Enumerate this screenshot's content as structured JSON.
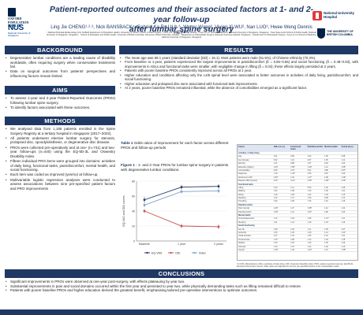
{
  "header": {
    "title_line1": "Patient-reported outcomes and their associated factors at 1- and 2-year follow-up",
    "title_line2": "after lumbar spine surgery",
    "authors": "Ling Jie CHENG¹·²·³, Nick BANSBACK⁴, Gabriel Ka Po LIU⁵·⁶, Wenru Wang², Vivien Xi WU², Nan LUO³, Hwee Weng Dennis HEY⁵·⁶",
    "affiliations": "¹ National Perinatal Epidemiology Unit, Nuffield Department of Population Health, University of Oxford, Oxford, United Kingdom; ² Alice Lee Centre for Nursing Studies, Yong Loo Lin School of Medicine, National University of Singapore, Singapore; ³ Saw Swee Hock School of Public Health, National University of Singapore, Singapore; ⁴ School of Population and Public Health, University of British Columbia, Vancouver, British Columbia, Canada; ⁵ Department of Orthopaedic Surgery, National University Hospital, Singapore; ⁶ Department of Orthopaedic Surgery, Yong Loo Lin School of Medicine, National University of Singapore, Singapore"
  },
  "logos": {
    "oxford": "OXFORD POPULATION HEALTH",
    "nus": "NUS",
    "nus_sub": "National University of Singapore",
    "nuh": "National University Hospital",
    "ubc": "THE UNIVERSITY OF BRITISH COLUMBIA"
  },
  "sections": {
    "background": "BACKGROUND",
    "aims": "AIMS",
    "methods": "METHODS",
    "results": "RESULTS",
    "conclusions": "CONCLUSIONS"
  },
  "background": [
    "Degenerative lumbar conditions are a leading cause of disability worldwide, often requiring surgery when conservative treatments fail.",
    "Data on surgical outcomes from patients' perspectives and influencing factors remain limited."
  ],
  "aims": [
    "To assess 1-year and 2-year Patient-Reported Outcomes (PROs) following lumbar spine surgery.",
    "To identify factors associated with these outcomes."
  ],
  "methods": [
    "We analysed data from 1,195 patients enrolled in the Spine Surgery Registry at a tertiary hospital in Singapore (2017–2022).",
    "All patients underwent elective lumbar surgery for stenosis, prolapsed disc, spondylolisthesis, or degenerative disc disease.",
    "PROs were collected pre-operatively and at one- (n=741) and two-year follow-ups (n=440) using the EQ-5D-3L and Oswestry Disability Index.",
    "Fifteen individual PRO items were grouped into domains: activities of daily living, functional tasks, pain/discomfort, mental health, and social functioning.",
    "Each item was coded as improved (yes/no) at follow-up.",
    "Multivariable logistic regression analyses were conducted to assess associations between nine pre-specified patient factors and PRO improvements"
  ],
  "results": [
    "The mean age was 58.1 years (standard deviation [SD] = 16.1). Most patients were male (51.5%), of Chinese ethnicity (70.3%).",
    "From baseline to 1-year, patients experienced the largest improvements in pain/discomfort (δ = 0.55–0.56) and social functioning (δ = 0.48–0.53), with improvements in ADLs and functional tasks were smaller, with negligible change in lifting (δ = 0.04); these effects largely persisted at 2 years.",
    "Patients with poorer baseline PROs consistently improved across all PROs at 1 year.",
    "Higher education and conditions affecting only the L4/5 spinal level were associated to better outcomes in activities of daily living, pain/discomfort, and social functioning.",
    "Higher education and prolapsed disc were associated with functional task improvements.",
    "At 2 years, poorer baseline PROs remained influential, while the absence of comorbidities emerged as a significant factor."
  ],
  "table_caption": {
    "label": "Table 1",
    "text": "Odds ratios of improvement for each factor across different PROs and follow-up periods"
  },
  "fig_caption": {
    "label": "Figure 1",
    "text": "- 1- and 2-Year PROs for lumbar spine surgery in patients with degenerative lumbar conditions."
  },
  "chart_data": {
    "type": "line",
    "title": "",
    "xlabel": "",
    "ylabel": "EQ-VAS and ODI scores",
    "categories": [
      "Baseline",
      "1 year",
      "2 years"
    ],
    "ylim": [
      0,
      80
    ],
    "yticks": [
      0,
      20,
      40,
      60,
      80
    ],
    "series": [
      {
        "name": "EQ-VAS",
        "color": "#1f3864",
        "values": [
          55,
          72,
          73
        ],
        "errors": [
          4,
          3,
          3
        ]
      },
      {
        "name": "ODI",
        "color": "#c5504b",
        "values": [
          40,
          20,
          19
        ],
        "errors": [
          3,
          3,
          3
        ]
      },
      {
        "name": "Index",
        "color": "#7f9fc8",
        "values": [
          48,
          66,
          67
        ],
        "errors": [
          3,
          3,
          3
        ]
      }
    ],
    "legend_position": "bottom"
  },
  "table": {
    "headers": [
      "Factor",
      "ADLs (1-yr)",
      "Functional tasks",
      "Pain/discomfort",
      "Mental health",
      "Social (2-yr)"
    ],
    "rows": [
      {
        "group": true,
        "cells": [
          "Activities of daily living",
          "",
          "",
          "",
          "",
          ""
        ]
      },
      {
        "group": false,
        "cells": [
          "Age",
          "1.01",
          "0.99",
          "1.02",
          "1.00",
          "0.98"
        ]
      },
      {
        "group": false,
        "cells": [
          "Sex (female)",
          "0.92",
          "1.10",
          "0.87",
          "1.05",
          "1.14"
        ]
      },
      {
        "group": false,
        "cells": [
          "Ethnicity",
          "1.21",
          "0.88",
          "1.07",
          "0.94",
          "1.02"
        ]
      },
      {
        "group": false,
        "cells": [
          "Education (higher)",
          "1.64*",
          "1.58*",
          "1.49*",
          "1.12",
          "1.55*"
        ]
      },
      {
        "group": false,
        "cells": [
          "Comorbidities",
          "0.85",
          "0.79",
          "0.91",
          "0.88",
          "0.67*"
        ]
      },
      {
        "group": false,
        "cells": [
          "Diagnosis",
          "1.10",
          "1.43*",
          "1.05",
          "0.97",
          "1.09"
        ]
      },
      {
        "group": false,
        "cells": [
          "Spinal level L4/5",
          "1.52*",
          "1.22",
          "1.47*",
          "1.08",
          "1.39*"
        ]
      },
      {
        "group": false,
        "cells": [
          "Baseline PRO (poorer)",
          "2.41*",
          "2.12*",
          "2.65*",
          "1.98*",
          "2.30*"
        ]
      },
      {
        "group": true,
        "cells": [
          "Functional tasks",
          "",
          "",
          "",
          "",
          ""
        ]
      },
      {
        "group": false,
        "cells": [
          "Lifting",
          "1.04",
          "1.11",
          "0.96",
          "1.02",
          "1.08"
        ]
      },
      {
        "group": false,
        "cells": [
          "Walking",
          "1.32",
          "1.28",
          "1.19",
          "1.06",
          "1.21"
        ]
      },
      {
        "group": false,
        "cells": [
          "Sitting",
          "1.18",
          "1.09",
          "1.24",
          "1.03",
          "1.15"
        ]
      },
      {
        "group": false,
        "cells": [
          "Standing",
          "1.22",
          "1.17",
          "1.30",
          "0.99",
          "1.12"
        ]
      },
      {
        "group": false,
        "cells": [
          "Travelling",
          "1.09",
          "1.05",
          "1.16",
          "1.01",
          "1.19"
        ]
      },
      {
        "group": true,
        "cells": [
          "Pain/discomfort",
          "",
          "",
          "",
          "",
          ""
        ]
      },
      {
        "group": false,
        "cells": [
          "Pain intensity",
          "1.46*",
          "1.27",
          "1.58*",
          "1.12",
          "1.34"
        ]
      },
      {
        "group": false,
        "cells": [
          "Pain/discomfort",
          "1.39*",
          "1.21",
          "1.51*",
          "1.08",
          "1.29"
        ]
      },
      {
        "group": true,
        "cells": [
          "Mental health",
          "",
          "",
          "",
          "",
          ""
        ]
      },
      {
        "group": false,
        "cells": [
          "Anxiety/depression",
          "1.12",
          "1.04",
          "1.09",
          "1.37*",
          "1.11"
        ]
      },
      {
        "group": false,
        "cells": [
          "Sleeping",
          "1.21",
          "1.13",
          "1.18",
          "1.24",
          "1.16"
        ]
      },
      {
        "group": true,
        "cells": [
          "Social functioning",
          "",
          "",
          "",
          "",
          ""
        ]
      },
      {
        "group": false,
        "cells": [
          "Sex life",
          "1.08",
          "1.02",
          "1.11",
          "1.05",
          "1.07"
        ]
      },
      {
        "group": false,
        "cells": [
          "Social life",
          "1.33",
          "1.26",
          "1.29",
          "1.14",
          "1.41*"
        ]
      },
      {
        "group": false,
        "cells": [
          "Usual activities",
          "1.27",
          "1.19",
          "1.35",
          "1.10",
          "1.31"
        ]
      },
      {
        "group": false,
        "cells": [
          "Personal care",
          "1.15",
          "1.08",
          "1.12",
          "1.03",
          "1.18"
        ]
      },
      {
        "group": false,
        "cells": [
          "Mobility",
          "1.24",
          "1.20",
          "1.22",
          "1.06",
          "1.25"
        ]
      },
      {
        "group": false,
        "cells": [
          "Self-care",
          "1.10",
          "1.07",
          "1.14",
          "1.02",
          "1.13"
        ]
      },
      {
        "group": false,
        "cells": [
          "Overall",
          "1.36*",
          "1.30",
          "1.42*",
          "1.15",
          "1.38*"
        ]
      }
    ],
    "note": "*p<0.05. Abbreviations: ADLs, activities of daily living; ODI, Oswestry Disability Index; PRO, patient-reported outcome; EQ-5D-3L, EuroQol 5-dimension 3-level. Odds ratios are adjusted for all nine pre-specified factors in the multivariable model."
  },
  "conclusions": [
    "Significant improvements in PROs were observed at one-year post-surgery, with effects plateauing by year two.",
    "Substantial improvements in pain and social domains occurred within the first year and persisted to year two, while physically demanding tasks such as lifting remained difficult to restore.",
    "Patients with poorer baseline PROs and higher education derived the greatest benefit, emphasising tailored pre-operative interventions to optimise outcomes."
  ]
}
